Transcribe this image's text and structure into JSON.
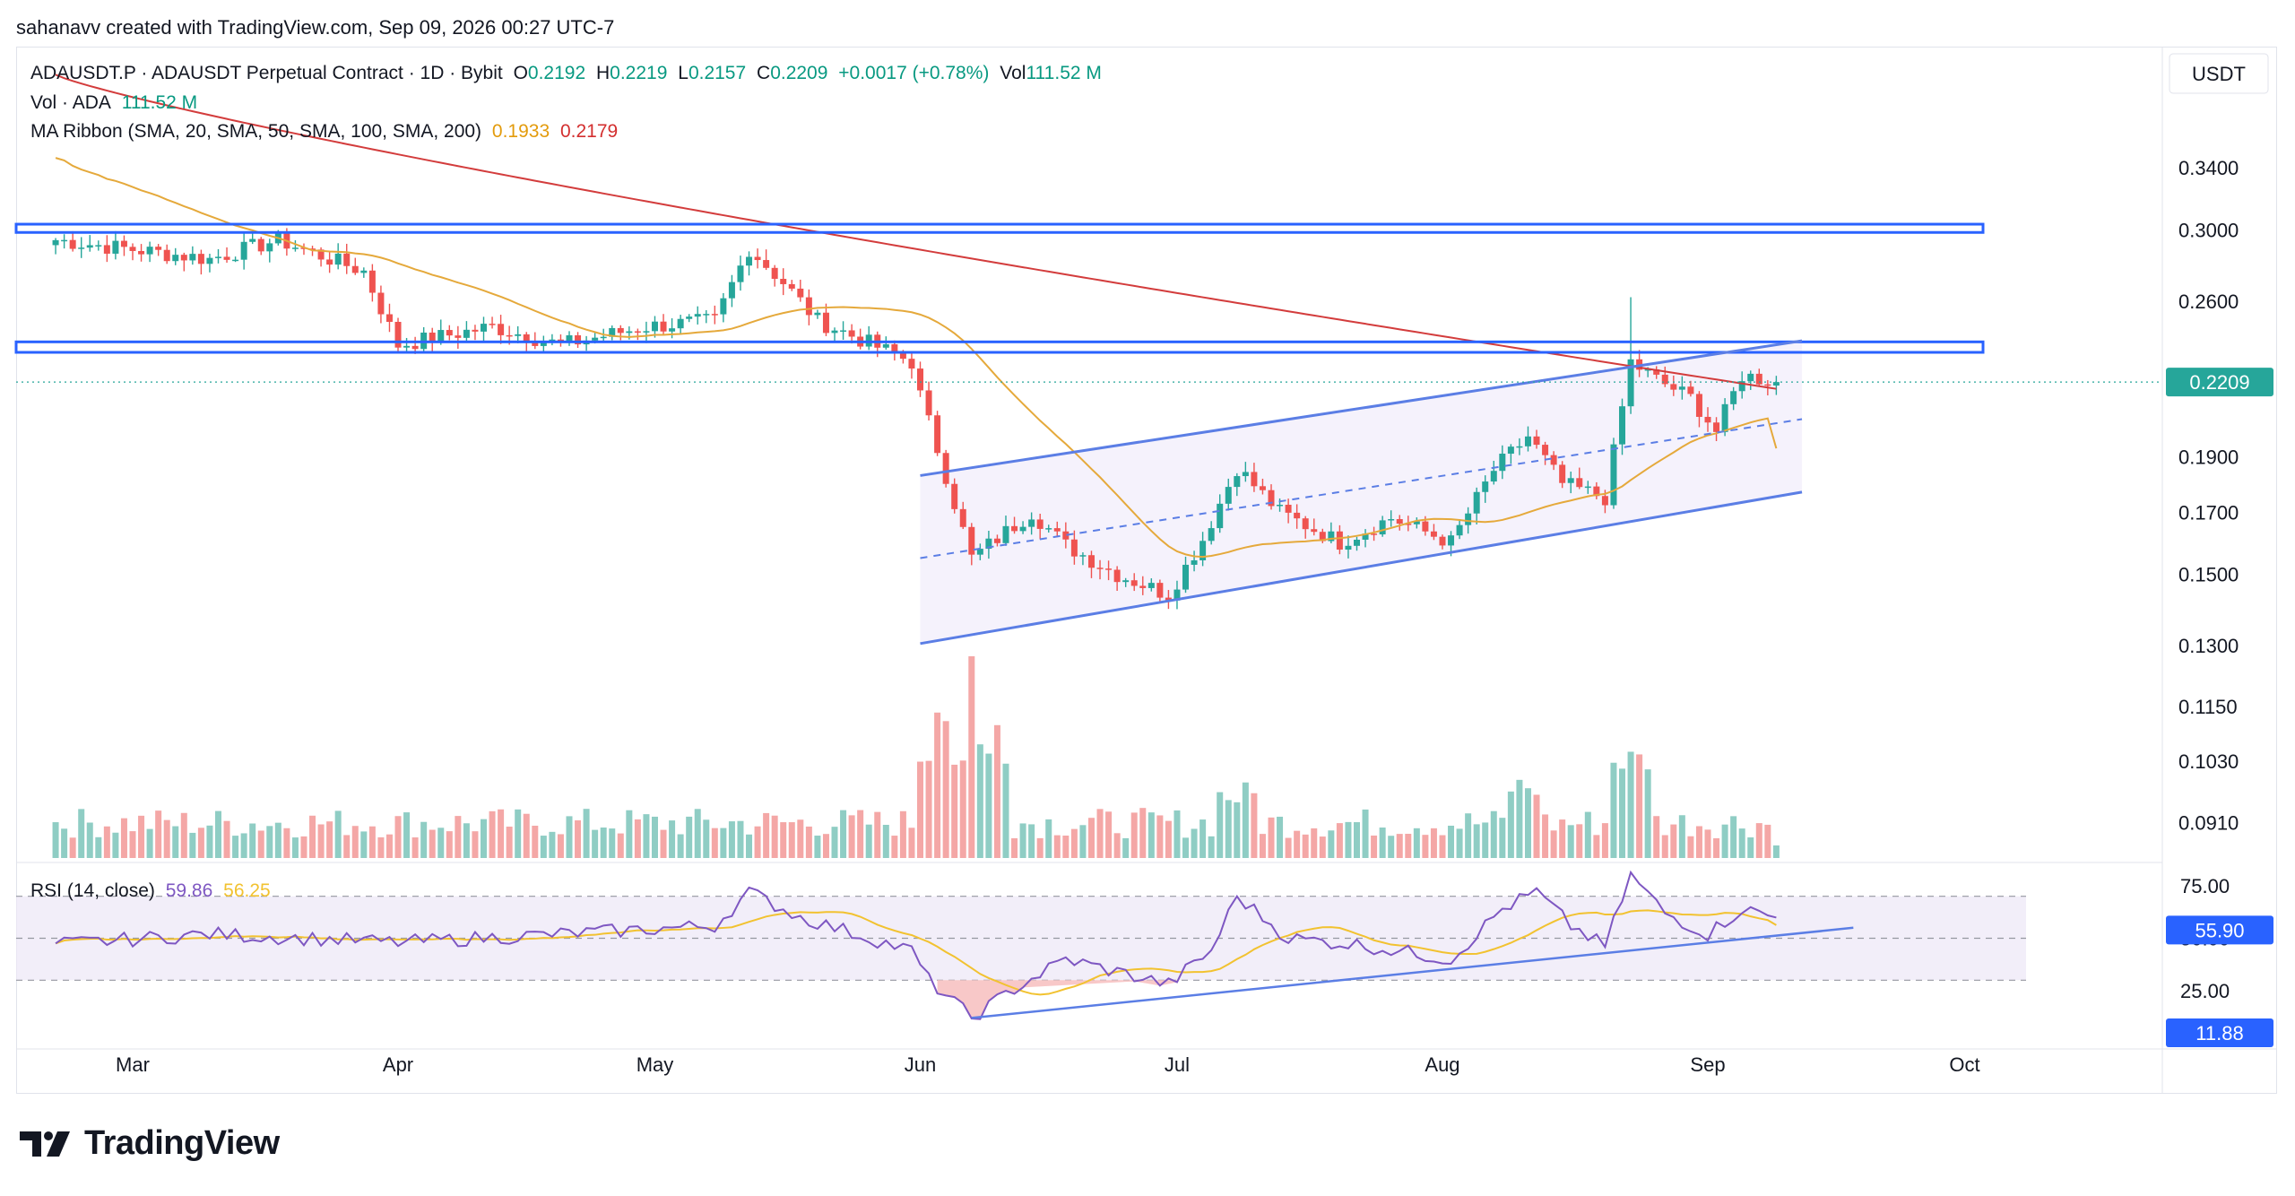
{
  "header": {
    "credit": "sahanavv created with TradingView.com, Sep 09, 2026 00:27 UTC-7"
  },
  "legend": {
    "symbol": "ADAUSDT.P · ADAUSDT Perpetual Contract · 1D · Bybit",
    "o_label": "O",
    "o_value": "0.2192",
    "h_label": "H",
    "h_value": "0.2219",
    "l_label": "L",
    "l_value": "0.2157",
    "c_label": "C",
    "c_value": "0.2209",
    "change": "+0.0017 (+0.78%)",
    "vol_label": "Vol",
    "vol_value": "111.52 M",
    "vol_line_label": "Vol · ADA",
    "vol_line_value": "111.52 M",
    "ma_label": "MA Ribbon (SMA, 20, SMA, 50, SMA, 100, SMA, 200)",
    "ma_value_1": "0.1933",
    "ma_value_2": "0.2179",
    "rsi_label": "RSI (14, close)",
    "rsi_value": "59.86",
    "rsi_ma_value": "56.25"
  },
  "brand": {
    "name": "TradingView"
  },
  "colors": {
    "up": "#26a69a",
    "down": "#ef5350",
    "vol_up": "#8fcdc4",
    "vol_down": "#f4a7a6",
    "ma50": "#e5a93b",
    "ma200": "#d33c3c",
    "level": "#2962ff",
    "channel": "#5b7ee5",
    "rsi": "#7e57c2",
    "rsi_ma": "#f2c230"
  },
  "chart_data": {
    "type": "candlestick",
    "symbol": "ADAUSDT.P",
    "interval": "1D",
    "currency": "USDT",
    "x_axis": {
      "ticks": [
        "Mar",
        "Apr",
        "May",
        "Jun",
        "Jul",
        "Aug",
        "Sep",
        "Oct"
      ]
    },
    "y_axis": {
      "scale": "log",
      "ticks": [
        "0.3400",
        "0.3000",
        "0.2600",
        "0.1900",
        "0.1700",
        "0.1500",
        "0.1300",
        "0.1150",
        "0.1030",
        "0.0910"
      ],
      "range": [
        0.084,
        0.42
      ],
      "last_price_label": "0.2209"
    },
    "last_price": 0.2209,
    "anchors": [
      {
        "date": "Feb 20",
        "close": 0.294
      },
      {
        "date": "Mar 10",
        "close": 0.283
      },
      {
        "date": "Mar 18",
        "close": 0.294
      },
      {
        "date": "Mar 28",
        "close": 0.276
      },
      {
        "date": "Apr 01",
        "close": 0.238
      },
      {
        "date": "Apr 12",
        "close": 0.247
      },
      {
        "date": "Apr 20",
        "close": 0.238
      },
      {
        "date": "Apr 30",
        "close": 0.247
      },
      {
        "date": "May 08",
        "close": 0.25
      },
      {
        "date": "May 12",
        "close": 0.289
      },
      {
        "date": "May 16",
        "close": 0.27
      },
      {
        "date": "May 20",
        "close": 0.25
      },
      {
        "date": "May 31",
        "close": 0.23
      },
      {
        "date": "Jun 01",
        "close": 0.215
      },
      {
        "date": "Jun 04",
        "close": 0.183
      },
      {
        "date": "Jun 07",
        "close": 0.155
      },
      {
        "date": "Jun 14",
        "close": 0.17
      },
      {
        "date": "Jun 18",
        "close": 0.159
      },
      {
        "date": "Jun 24",
        "close": 0.15
      },
      {
        "date": "Jun 30",
        "close": 0.144
      },
      {
        "date": "Jul 04",
        "close": 0.161
      },
      {
        "date": "Jul 08",
        "close": 0.186
      },
      {
        "date": "Jul 13",
        "close": 0.17
      },
      {
        "date": "Jul 20",
        "close": 0.16
      },
      {
        "date": "Jul 26",
        "close": 0.168
      },
      {
        "date": "Aug 02",
        "close": 0.16
      },
      {
        "date": "Aug 07",
        "close": 0.185
      },
      {
        "date": "Aug 11",
        "close": 0.198
      },
      {
        "date": "Aug 15",
        "close": 0.18
      },
      {
        "date": "Aug 20",
        "close": 0.175
      },
      {
        "date": "Aug 23",
        "close": 0.23
      },
      {
        "date": "Aug 26",
        "close": 0.222
      },
      {
        "date": "Aug 30",
        "close": 0.214
      },
      {
        "date": "Sep 02",
        "close": 0.2
      },
      {
        "date": "Sep 05",
        "close": 0.224
      },
      {
        "date": "Sep 09",
        "close": 0.2209
      }
    ],
    "indicators": {
      "ma_ribbon": {
        "sma50": 0.1933,
        "sma200": 0.2179
      },
      "volume": {
        "last": "111.52 M",
        "peak_date": "Jun 07"
      }
    },
    "annotations": {
      "resistance_zones": [
        [
          0.2985,
          0.3035
        ],
        [
          0.2345,
          0.2395
        ]
      ],
      "ascending_channel": {
        "start": "Jun 01",
        "end": "Sep 12",
        "upper": [
          0.183,
          0.24
        ],
        "middle": [
          0.155,
          0.205
        ],
        "lower": [
          0.1305,
          0.177
        ]
      }
    },
    "rsi": {
      "period": 14,
      "value": 59.86,
      "ma_value": 56.25,
      "axis_ticks": [
        "75.00",
        "50.00",
        "25.00"
      ],
      "levels": [
        70,
        50,
        30
      ],
      "price_labels": [
        "55.90",
        "11.88"
      ],
      "min_date": "Jun 07",
      "anchors": [
        {
          "date": "Feb 20",
          "value": 47
        },
        {
          "date": "Mar 10",
          "value": 52
        },
        {
          "date": "Apr 01",
          "value": 48
        },
        {
          "date": "Apr 20",
          "value": 52
        },
        {
          "date": "May 08",
          "value": 56
        },
        {
          "date": "May 12",
          "value": 72
        },
        {
          "date": "May 18",
          "value": 60
        },
        {
          "date": "May 31",
          "value": 44
        },
        {
          "date": "Jun 02",
          "value": 30
        },
        {
          "date": "Jun 07",
          "value": 12
        },
        {
          "date": "Jun 12",
          "value": 26
        },
        {
          "date": "Jun 18",
          "value": 40
        },
        {
          "date": "Jun 30",
          "value": 28
        },
        {
          "date": "Jul 05",
          "value": 44
        },
        {
          "date": "Jul 08",
          "value": 70
        },
        {
          "date": "Jul 14",
          "value": 50
        },
        {
          "date": "Jul 22",
          "value": 47
        },
        {
          "date": "Aug 02",
          "value": 40
        },
        {
          "date": "Aug 08",
          "value": 64
        },
        {
          "date": "Aug 12",
          "value": 72
        },
        {
          "date": "Aug 16",
          "value": 56
        },
        {
          "date": "Aug 20",
          "value": 46
        },
        {
          "date": "Aug 23",
          "value": 80
        },
        {
          "date": "Aug 27",
          "value": 62
        },
        {
          "date": "Sep 01",
          "value": 52
        },
        {
          "date": "Sep 05",
          "value": 64
        },
        {
          "date": "Sep 09",
          "value": 59.86
        }
      ],
      "trendline": {
        "start": [
          "Jun 07",
          12
        ],
        "end": [
          "Sep 18",
          55
        ]
      }
    }
  }
}
